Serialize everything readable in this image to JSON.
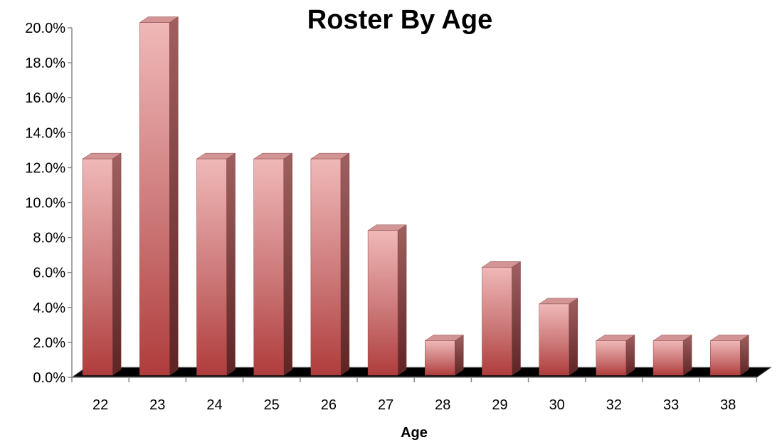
{
  "chart_data": {
    "type": "bar",
    "title": "Roster By Age",
    "xlabel": "Age",
    "ylabel": "",
    "categories": [
      "22",
      "23",
      "24",
      "25",
      "26",
      "27",
      "28",
      "29",
      "30",
      "32",
      "33",
      "38"
    ],
    "values": [
      12.5,
      20.3,
      12.5,
      12.5,
      12.5,
      8.4,
      2.1,
      6.3,
      4.2,
      2.1,
      2.1,
      2.1
    ],
    "value_format": "percent",
    "y_ticks": [
      "0.0%",
      "2.0%",
      "4.0%",
      "6.0%",
      "8.0%",
      "10.0%",
      "12.0%",
      "14.0%",
      "16.0%",
      "18.0%",
      "20.0%"
    ],
    "ylim": [
      0,
      20
    ],
    "grid": false,
    "legend": "none",
    "bar_color": "#b85454",
    "floor_color": "#000000"
  }
}
